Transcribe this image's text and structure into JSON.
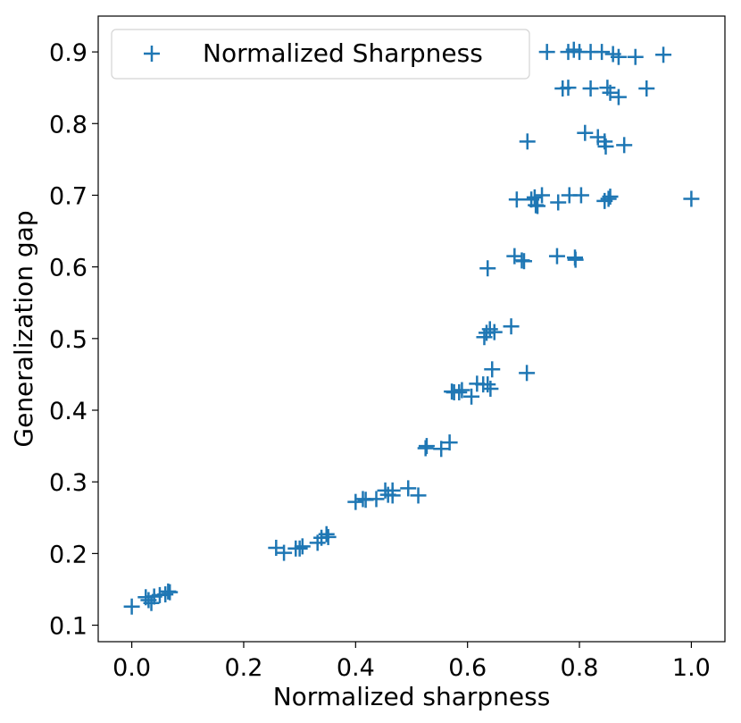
{
  "chart_data": {
    "type": "scatter",
    "title": "",
    "xlabel": "Normalized sharpness",
    "ylabel": "Generalization gap",
    "xlim": [
      -0.06,
      1.06
    ],
    "ylim": [
      0.077,
      0.95
    ],
    "xticks": [
      "0.0",
      "0.2",
      "0.4",
      "0.6",
      "0.8",
      "1.0"
    ],
    "yticks": [
      "0.1",
      "0.2",
      "0.3",
      "0.4",
      "0.5",
      "0.6",
      "0.7",
      "0.8",
      "0.9"
    ],
    "grid": false,
    "legend_position": "top-left",
    "marker": "plus",
    "color": "#1f77b4",
    "series": [
      {
        "name": "Normalized Sharpness",
        "x": [
          0.742,
          0.78,
          0.79,
          0.8,
          0.82,
          0.84,
          0.86,
          0.87,
          0.9,
          0.95,
          0.77,
          0.78,
          0.82,
          0.85,
          0.855,
          0.87,
          0.92,
          0.81,
          0.833,
          0.845,
          0.847,
          0.88,
          0.707,
          0.688,
          0.714,
          0.72,
          0.733,
          0.762,
          0.782,
          0.803,
          0.845,
          0.852,
          0.855,
          1.0,
          0.722,
          0.725,
          0.684,
          0.697,
          0.701,
          0.76,
          0.792,
          0.793,
          0.636,
          0.63,
          0.634,
          0.64,
          0.648,
          0.678,
          0.706,
          0.644,
          0.572,
          0.576,
          0.585,
          0.59,
          0.607,
          0.617,
          0.628,
          0.636,
          0.641,
          0.525,
          0.527,
          0.553,
          0.568,
          0.4,
          0.413,
          0.418,
          0.437,
          0.453,
          0.458,
          0.466,
          0.466,
          0.494,
          0.512,
          0.258,
          0.272,
          0.293,
          0.3,
          0.305,
          0.332,
          0.339,
          0.348,
          0.351,
          0.0,
          0.025,
          0.03,
          0.035,
          0.04,
          0.05,
          0.06,
          0.065,
          0.068
        ],
        "y": [
          0.9,
          0.9,
          0.903,
          0.9,
          0.9,
          0.9,
          0.897,
          0.893,
          0.893,
          0.896,
          0.849,
          0.85,
          0.849,
          0.85,
          0.843,
          0.837,
          0.849,
          0.787,
          0.781,
          0.775,
          0.768,
          0.77,
          0.775,
          0.694,
          0.694,
          0.697,
          0.7,
          0.69,
          0.7,
          0.7,
          0.692,
          0.695,
          0.698,
          0.695,
          0.686,
          0.685,
          0.615,
          0.609,
          0.608,
          0.615,
          0.613,
          0.61,
          0.598,
          0.502,
          0.508,
          0.513,
          0.509,
          0.517,
          0.452,
          0.457,
          0.426,
          0.425,
          0.425,
          0.428,
          0.419,
          0.437,
          0.436,
          0.436,
          0.43,
          0.347,
          0.35,
          0.346,
          0.355,
          0.272,
          0.276,
          0.275,
          0.276,
          0.288,
          0.282,
          0.288,
          0.281,
          0.291,
          0.281,
          0.208,
          0.201,
          0.207,
          0.207,
          0.21,
          0.215,
          0.222,
          0.227,
          0.223,
          0.126,
          0.139,
          0.135,
          0.131,
          0.14,
          0.142,
          0.143,
          0.147,
          0.146
        ]
      }
    ]
  }
}
